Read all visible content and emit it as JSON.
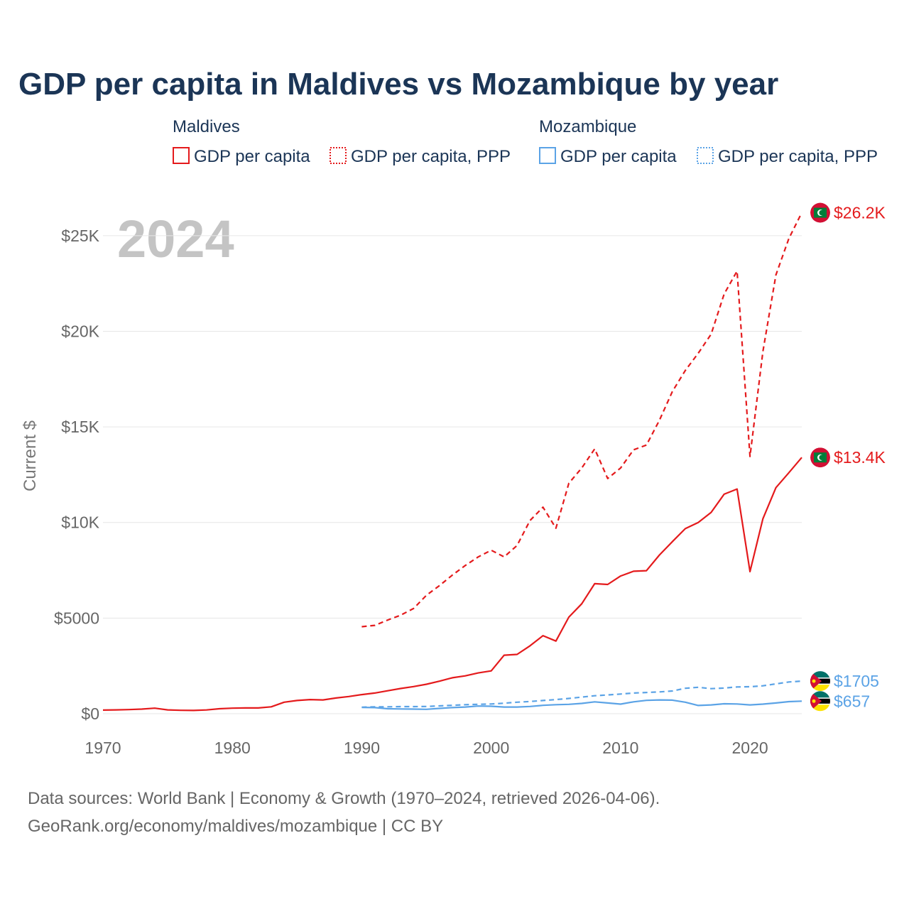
{
  "chart_data": {
    "type": "line",
    "title": "GDP per capita in Maldives vs Mozambique by year",
    "ylabel": "Current $",
    "year_label": "2024",
    "x_ticks": [
      1970,
      1980,
      1990,
      2000,
      2010,
      2020
    ],
    "y_ticks": [
      {
        "value": 0,
        "label": "$0"
      },
      {
        "value": 5000,
        "label": "$5000"
      },
      {
        "value": 10000,
        "label": "$10K"
      },
      {
        "value": 15000,
        "label": "$15K"
      },
      {
        "value": 20000,
        "label": "$20K"
      },
      {
        "value": 25000,
        "label": "$25K"
      }
    ],
    "xlim": [
      1970,
      2024
    ],
    "ylim": [
      0,
      27000
    ],
    "legend": {
      "groups": [
        {
          "country": "Maldives",
          "color": "#e41a1c",
          "items": [
            "GDP per capita",
            "GDP per capita, PPP"
          ]
        },
        {
          "country": "Mozambique",
          "color": "#5ba3e6",
          "items": [
            "GDP per capita",
            "GDP per capita, PPP"
          ]
        }
      ]
    },
    "series": [
      {
        "name": "Maldives GDP per capita",
        "country": "Maldives",
        "color": "#e41a1c",
        "dash": false,
        "end_label": "$13.4K",
        "x": [
          1970,
          1971,
          1972,
          1973,
          1974,
          1975,
          1976,
          1977,
          1978,
          1979,
          1980,
          1981,
          1982,
          1983,
          1984,
          1985,
          1986,
          1987,
          1988,
          1989,
          1990,
          1991,
          1992,
          1993,
          1994,
          1995,
          1996,
          1997,
          1998,
          1999,
          2000,
          2001,
          2002,
          2003,
          2004,
          2005,
          2006,
          2007,
          2008,
          2009,
          2010,
          2011,
          2012,
          2013,
          2014,
          2015,
          2016,
          2017,
          2018,
          2019,
          2020,
          2021,
          2022,
          2023,
          2024
        ],
        "y": [
          190,
          200,
          215,
          240,
          290,
          200,
          180,
          170,
          195,
          260,
          290,
          300,
          300,
          360,
          600,
          690,
          740,
          720,
          820,
          900,
          1000,
          1080,
          1200,
          1320,
          1420,
          1540,
          1700,
          1880,
          1980,
          2130,
          2240,
          3060,
          3100,
          3550,
          4080,
          3800,
          5050,
          5750,
          6800,
          6760,
          7200,
          7450,
          7480,
          8300,
          9000,
          9680,
          10000,
          10530,
          11480,
          11750,
          7430,
          10200,
          11820,
          12600,
          13400
        ]
      },
      {
        "name": "Maldives GDP per capita, PPP",
        "country": "Maldives",
        "color": "#e41a1c",
        "dash": true,
        "end_label": "$26.2K",
        "x": [
          1990,
          1991,
          1992,
          1993,
          1994,
          1995,
          1996,
          1997,
          1998,
          1999,
          2000,
          2001,
          2002,
          2003,
          2004,
          2005,
          2006,
          2007,
          2008,
          2009,
          2010,
          2011,
          2012,
          2013,
          2014,
          2015,
          2016,
          2017,
          2018,
          2019,
          2020,
          2021,
          2022,
          2023,
          2024
        ],
        "y": [
          4550,
          4620,
          4900,
          5150,
          5500,
          6200,
          6700,
          7250,
          7750,
          8200,
          8550,
          8200,
          8800,
          10100,
          10800,
          9700,
          12050,
          12850,
          13850,
          12300,
          12850,
          13800,
          14050,
          15350,
          16850,
          17950,
          18850,
          19850,
          21950,
          23150,
          13450,
          18950,
          22950,
          24850,
          26200
        ]
      },
      {
        "name": "Mozambique GDP per capita",
        "country": "Mozambique",
        "color": "#5ba3e6",
        "dash": false,
        "end_label": "$657",
        "x": [
          1990,
          1991,
          1992,
          1993,
          1994,
          1995,
          1996,
          1997,
          1998,
          1999,
          2000,
          2001,
          2002,
          2003,
          2004,
          2005,
          2006,
          2007,
          2008,
          2009,
          2010,
          2011,
          2012,
          2013,
          2014,
          2015,
          2016,
          2017,
          2018,
          2019,
          2020,
          2021,
          2022,
          2023,
          2024
        ],
        "y": [
          330,
          320,
          260,
          250,
          240,
          230,
          280,
          320,
          350,
          400,
          390,
          350,
          350,
          380,
          440,
          470,
          490,
          540,
          620,
          560,
          500,
          620,
          700,
          720,
          710,
          600,
          430,
          460,
          520,
          510,
          460,
          500,
          560,
          630,
          657
        ]
      },
      {
        "name": "Mozambique GDP per capita, PPP",
        "country": "Mozambique",
        "color": "#5ba3e6",
        "dash": true,
        "end_label": "$1705",
        "x": [
          1990,
          1991,
          1992,
          1993,
          1994,
          1995,
          1996,
          1997,
          1998,
          1999,
          2000,
          2001,
          2002,
          2003,
          2004,
          2005,
          2006,
          2007,
          2008,
          2009,
          2010,
          2011,
          2012,
          2013,
          2014,
          2015,
          2016,
          2017,
          2018,
          2019,
          2020,
          2021,
          2022,
          2023,
          2024
        ],
        "y": [
          340,
          360,
          360,
          370,
          370,
          380,
          410,
          440,
          470,
          490,
          510,
          550,
          600,
          640,
          690,
          740,
          800,
          870,
          940,
          980,
          1030,
          1080,
          1110,
          1140,
          1190,
          1330,
          1380,
          1310,
          1340,
          1400,
          1410,
          1460,
          1560,
          1660,
          1705
        ]
      }
    ],
    "sources": [
      "Data sources: World Bank | Economy & Growth (1970–2024, retrieved 2026-04-06).",
      "GeoRank.org/economy/maldives/mozambique | CC BY"
    ]
  }
}
